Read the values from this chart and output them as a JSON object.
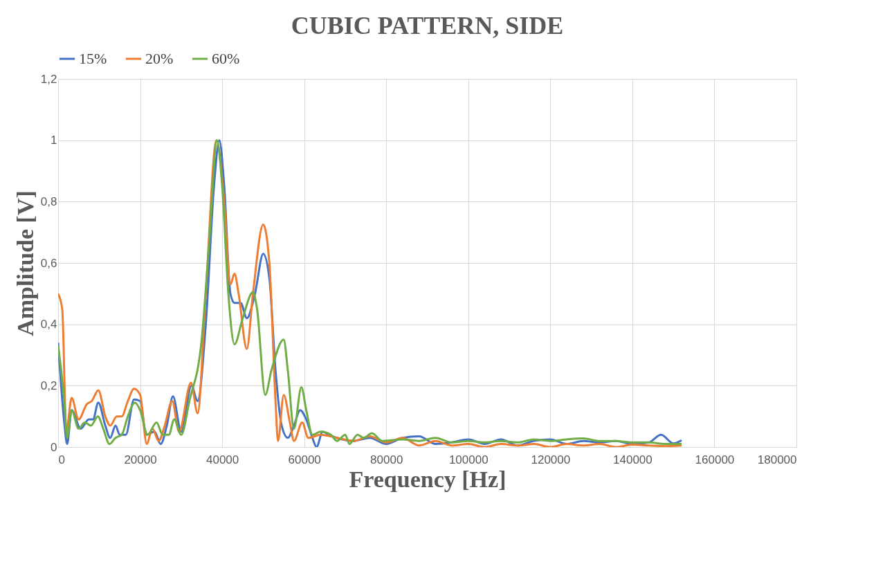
{
  "chart_data": {
    "type": "line",
    "title": "CUBIC PATTERN, SIDE",
    "xlabel": "Frequency [Hz]",
    "ylabel": "Amplitude [V]",
    "xlim": [
      0,
      180000
    ],
    "xticks": [
      0,
      20000,
      40000,
      60000,
      80000,
      100000,
      120000,
      140000,
      160000,
      180000
    ],
    "ylim": [
      0,
      1.2
    ],
    "yticks": [
      {
        "value": 0,
        "label": "0"
      },
      {
        "value": 0.2,
        "label": "0,2"
      },
      {
        "value": 0.4,
        "label": "0,4"
      },
      {
        "value": 0.6,
        "label": "0,6"
      },
      {
        "value": 0.8,
        "label": "0,8"
      },
      {
        "value": 1,
        "label": "1"
      },
      {
        "value": 1.2,
        "label": "1,2"
      }
    ],
    "grid": true,
    "legend": "top",
    "marker": "none",
    "line_style": "solid",
    "series": [
      {
        "name": "15%",
        "color": "#4472c4",
        "x": [
          0,
          1500,
          2200,
          3300,
          5500,
          7500,
          8500,
          9800,
          11500,
          12700,
          14000,
          15000,
          16500,
          18500,
          20000,
          21500,
          23500,
          25000,
          26500,
          28000,
          30000,
          32500,
          34000,
          36000,
          38000,
          39300,
          40500,
          42000,
          43000,
          44500,
          46000,
          48000,
          50000,
          51500,
          53000,
          54500,
          56000,
          57500,
          59000,
          60500,
          62000,
          63000,
          64500,
          66000,
          68000,
          72000,
          76000,
          80000,
          84000,
          88000,
          92000,
          96000,
          100000,
          104000,
          108000,
          112000,
          116000,
          120000,
          124000,
          128000,
          132000,
          136000,
          140000,
          144000,
          147000,
          150000,
          152000
        ],
        "values": [
          0.34,
          0.08,
          0.01,
          0.12,
          0.06,
          0.09,
          0.09,
          0.145,
          0.07,
          0.03,
          0.07,
          0.04,
          0.04,
          0.155,
          0.15,
          0.04,
          0.05,
          0.01,
          0.07,
          0.165,
          0.05,
          0.2,
          0.15,
          0.4,
          0.85,
          1.0,
          0.85,
          0.5,
          0.47,
          0.47,
          0.42,
          0.5,
          0.63,
          0.55,
          0.25,
          0.07,
          0.03,
          0.07,
          0.12,
          0.09,
          0.03,
          0.0,
          0.05,
          0.04,
          0.03,
          0.02,
          0.03,
          0.01,
          0.03,
          0.035,
          0.01,
          0.015,
          0.025,
          0.01,
          0.025,
          0.005,
          0.02,
          0.025,
          0.01,
          0.02,
          0.015,
          0.02,
          0.01,
          0.015,
          0.04,
          0.012,
          0.022
        ]
      },
      {
        "name": "20%",
        "color": "#ed7d31",
        "x": [
          0,
          1000,
          2000,
          3300,
          5000,
          7000,
          8200,
          9800,
          11500,
          12700,
          14300,
          15500,
          17000,
          18500,
          20000,
          21600,
          23000,
          24500,
          26000,
          27800,
          29500,
          32400,
          34000,
          36000,
          38600,
          40500,
          42000,
          43000,
          44000,
          46000,
          47500,
          50000,
          51500,
          53000,
          53600,
          55000,
          56500,
          57500,
          59500,
          61000,
          64000,
          68000,
          72000,
          76000,
          80000,
          84000,
          88000,
          92000,
          96000,
          100000,
          104000,
          108000,
          112000,
          116000,
          120000,
          124000,
          128000,
          132000,
          136000,
          140000,
          144000,
          148000,
          152000
        ],
        "values": [
          0.5,
          0.45,
          0.05,
          0.16,
          0.09,
          0.14,
          0.15,
          0.185,
          0.1,
          0.07,
          0.1,
          0.1,
          0.15,
          0.19,
          0.17,
          0.01,
          0.06,
          0.02,
          0.07,
          0.15,
          0.05,
          0.21,
          0.11,
          0.5,
          1.0,
          0.8,
          0.53,
          0.565,
          0.5,
          0.32,
          0.5,
          0.725,
          0.6,
          0.15,
          0.02,
          0.17,
          0.08,
          0.02,
          0.08,
          0.03,
          0.04,
          0.03,
          0.02,
          0.035,
          0.015,
          0.03,
          0.005,
          0.02,
          0.005,
          0.01,
          0.0,
          0.01,
          0.005,
          0.01,
          0.0,
          0.01,
          0.005,
          0.01,
          0.0,
          0.008,
          0.005,
          0.003,
          0.005
        ]
      },
      {
        "name": "60%",
        "color": "#70ad47",
        "x": [
          0,
          1500,
          2200,
          3300,
          5000,
          6500,
          8000,
          9700,
          11000,
          12500,
          14000,
          15500,
          17000,
          18700,
          20000,
          21800,
          24000,
          25500,
          27000,
          28300,
          30000,
          32000,
          35000,
          37000,
          38700,
          40000,
          41500,
          43000,
          45000,
          47500,
          48500,
          50500,
          52000,
          55000,
          56000,
          57500,
          59300,
          60500,
          62000,
          64000,
          66500,
          68000,
          70000,
          71000,
          73000,
          74500,
          76500,
          79000,
          84000,
          88000,
          92000,
          96000,
          100000,
          104000,
          108000,
          112000,
          116000,
          120000,
          124000,
          128000,
          132000,
          136000,
          140000,
          144000,
          148000,
          152000
        ],
        "values": [
          0.33,
          0.15,
          0.03,
          0.12,
          0.06,
          0.08,
          0.07,
          0.1,
          0.06,
          0.01,
          0.03,
          0.04,
          0.1,
          0.145,
          0.12,
          0.04,
          0.08,
          0.04,
          0.04,
          0.09,
          0.04,
          0.15,
          0.35,
          0.7,
          1.0,
          0.85,
          0.5,
          0.335,
          0.42,
          0.505,
          0.45,
          0.17,
          0.25,
          0.35,
          0.25,
          0.06,
          0.195,
          0.12,
          0.04,
          0.05,
          0.04,
          0.02,
          0.04,
          0.01,
          0.04,
          0.03,
          0.045,
          0.02,
          0.025,
          0.02,
          0.03,
          0.015,
          0.02,
          0.015,
          0.02,
          0.015,
          0.025,
          0.02,
          0.025,
          0.028,
          0.02,
          0.02,
          0.015,
          0.015,
          0.01,
          0.01
        ]
      }
    ]
  }
}
